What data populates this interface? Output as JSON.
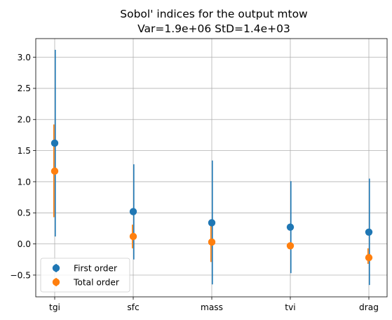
{
  "chart_data": {
    "type": "scatter",
    "title": "Sobol' indices for the output mtow",
    "subtitle": "Var=1.9e+06    StD=1.4e+03",
    "xlabel": "",
    "ylabel": "",
    "categories": [
      "tgi",
      "sfc",
      "mass",
      "tvi",
      "drag"
    ],
    "ylim": [
      -0.85,
      3.3
    ],
    "yticks": [
      -0.5,
      0.0,
      0.5,
      1.0,
      1.5,
      2.0,
      2.5,
      3.0
    ],
    "ytick_labels": [
      "−0.5",
      "0.0",
      "0.5",
      "1.0",
      "1.5",
      "2.0",
      "2.5",
      "3.0"
    ],
    "grid": true,
    "legend_position": "lower-left",
    "series": [
      {
        "name": "First order",
        "color": "#1f77b4",
        "values": [
          1.62,
          0.52,
          0.34,
          0.27,
          0.19
        ],
        "error_low": [
          0.12,
          -0.25,
          -0.65,
          -0.47,
          -0.66
        ],
        "error_high": [
          3.12,
          1.28,
          1.34,
          1.01,
          1.05
        ]
      },
      {
        "name": "Total order",
        "color": "#ff7f0e",
        "values": [
          1.17,
          0.12,
          0.03,
          -0.03,
          -0.22
        ],
        "error_low": [
          0.43,
          -0.07,
          -0.29,
          -0.07,
          -0.32
        ],
        "error_high": [
          1.92,
          0.31,
          0.34,
          0.02,
          -0.07
        ]
      }
    ]
  }
}
